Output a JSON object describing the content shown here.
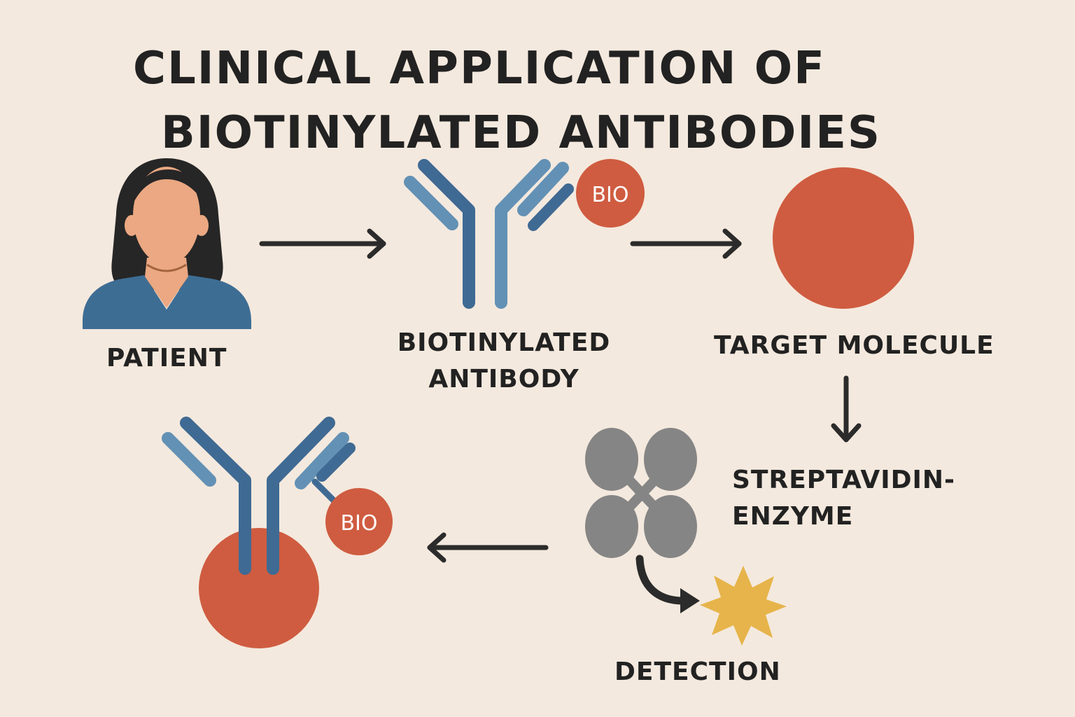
{
  "title": {
    "line1": "CLINICAL APPLICATION OF",
    "line2": "BIOTINYLATED ANTIBODIES"
  },
  "labels": {
    "patient": "PATIENT",
    "antibody_line1": "BIOTINYLATED",
    "antibody_line2": "ANTIBODY",
    "target": "TARGET MOLECULE",
    "strep_line1": "STREPTAVIDIN-",
    "strep_line2": "ENZYME",
    "detection": "DETECTION"
  },
  "tags": {
    "bio_top": "BIO",
    "bio_bottom": "BIO"
  },
  "icons": {
    "patient": "patient-person-icon",
    "antibody": "antibody-y-icon",
    "target": "target-molecule-circle-icon",
    "streptavidin": "streptavidin-tetramer-icon",
    "detection": "detection-starburst-icon",
    "complex": "antibody-bound-target-complex-icon"
  },
  "colors": {
    "background": "#f4e9de",
    "text": "#222222",
    "antibody_dark": "#3f6a93",
    "antibody_light": "#6391b5",
    "target": "#cf5c40",
    "skin": "#eba882",
    "hair": "#262626",
    "shirt": "#3e6d94",
    "streptavidin": "#858585",
    "star": "#e6b44a",
    "arrow": "#2b2b2b"
  }
}
